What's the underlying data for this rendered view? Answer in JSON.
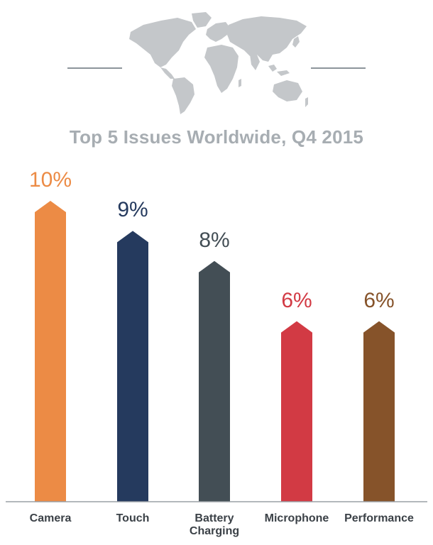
{
  "title": "Top 5 Issues Worldwide, Q4 2015",
  "chart_data": {
    "type": "bar",
    "title": "Top 5 Issues Worldwide, Q4 2015",
    "categories": [
      "Camera",
      "Touch",
      "Battery Charging",
      "Microphone",
      "Performance"
    ],
    "category_lines": [
      [
        "Camera"
      ],
      [
        "Touch"
      ],
      [
        "Battery",
        "Charging"
      ],
      [
        "Microphone"
      ],
      [
        "Performance"
      ]
    ],
    "values": [
      10,
      9,
      8,
      6,
      6
    ],
    "value_labels": [
      "10%",
      "9%",
      "8%",
      "6%",
      "6%"
    ],
    "colors": [
      "#ec8b45",
      "#253a5e",
      "#434e55",
      "#d23a44",
      "#86532a"
    ],
    "ylim": [
      0,
      10
    ],
    "grid": false,
    "legend": "none"
  },
  "decoration": {
    "map_color": "#c4c7ca",
    "line_color": "#8d959b",
    "baseline_color": "#9aa0a5"
  }
}
